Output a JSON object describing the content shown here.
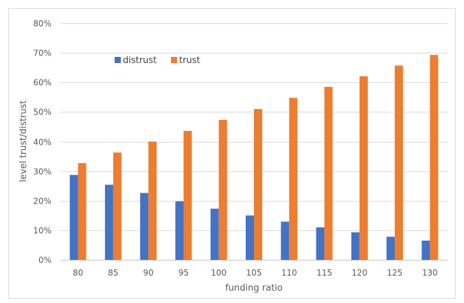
{
  "chart_data": {
    "type": "bar",
    "title": "",
    "xlabel": "funding ratio",
    "ylabel": "level trust/distrust",
    "categories": [
      "80",
      "85",
      "90",
      "95",
      "100",
      "105",
      "110",
      "115",
      "120",
      "125",
      "130"
    ],
    "series": [
      {
        "name": "distrust",
        "color": "#4472C4",
        "values": [
          28.7,
          25.4,
          22.6,
          19.8,
          17.3,
          15.0,
          12.9,
          11.0,
          9.3,
          7.8,
          6.5
        ]
      },
      {
        "name": "trust",
        "color": "#ED7D31",
        "values": [
          32.7,
          36.3,
          40.0,
          43.6,
          47.3,
          51.0,
          54.8,
          58.5,
          62.1,
          65.7,
          69.3
        ]
      }
    ],
    "ylim": [
      0,
      80
    ],
    "yticks": [
      "0%",
      "10%",
      "20%",
      "30%",
      "40%",
      "50%",
      "60%",
      "70%",
      "80%"
    ],
    "grid": "horizontal",
    "legend_position": "top-left"
  }
}
